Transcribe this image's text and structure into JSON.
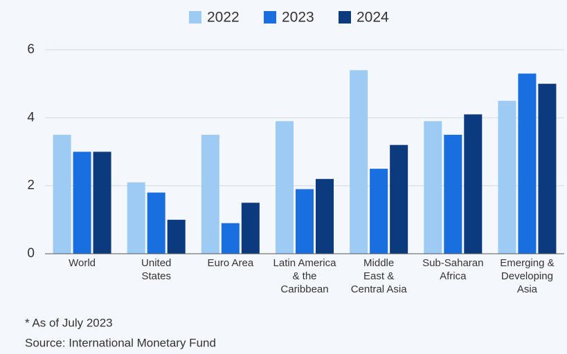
{
  "chart_data": {
    "type": "bar",
    "categories": [
      [
        "World"
      ],
      [
        "United",
        "States"
      ],
      [
        "Euro Area"
      ],
      [
        "Latin America",
        "& the",
        "Caribbean"
      ],
      [
        "Middle",
        "East &",
        "Central Asia"
      ],
      [
        "Sub-Saharan",
        "Africa"
      ],
      [
        "Emerging &",
        "Developing",
        "Asia"
      ]
    ],
    "series": [
      {
        "name": "2022",
        "color": "#9dcbf4",
        "values": [
          3.5,
          2.1,
          3.5,
          3.9,
          5.4,
          3.9,
          4.5
        ]
      },
      {
        "name": "2023",
        "color": "#1a6fe0",
        "values": [
          3.0,
          1.8,
          0.9,
          1.9,
          2.5,
          3.5,
          5.3
        ]
      },
      {
        "name": "2024",
        "color": "#0b3a7e",
        "values": [
          3.0,
          1.0,
          1.5,
          2.2,
          3.2,
          4.1,
          5.0
        ]
      }
    ],
    "ylim": [
      0,
      6
    ],
    "yticks": [
      0,
      2,
      4,
      6
    ],
    "grid": true,
    "legend": "top",
    "notes": [
      "* As of July 2023",
      "Source: International Monetary Fund"
    ]
  }
}
